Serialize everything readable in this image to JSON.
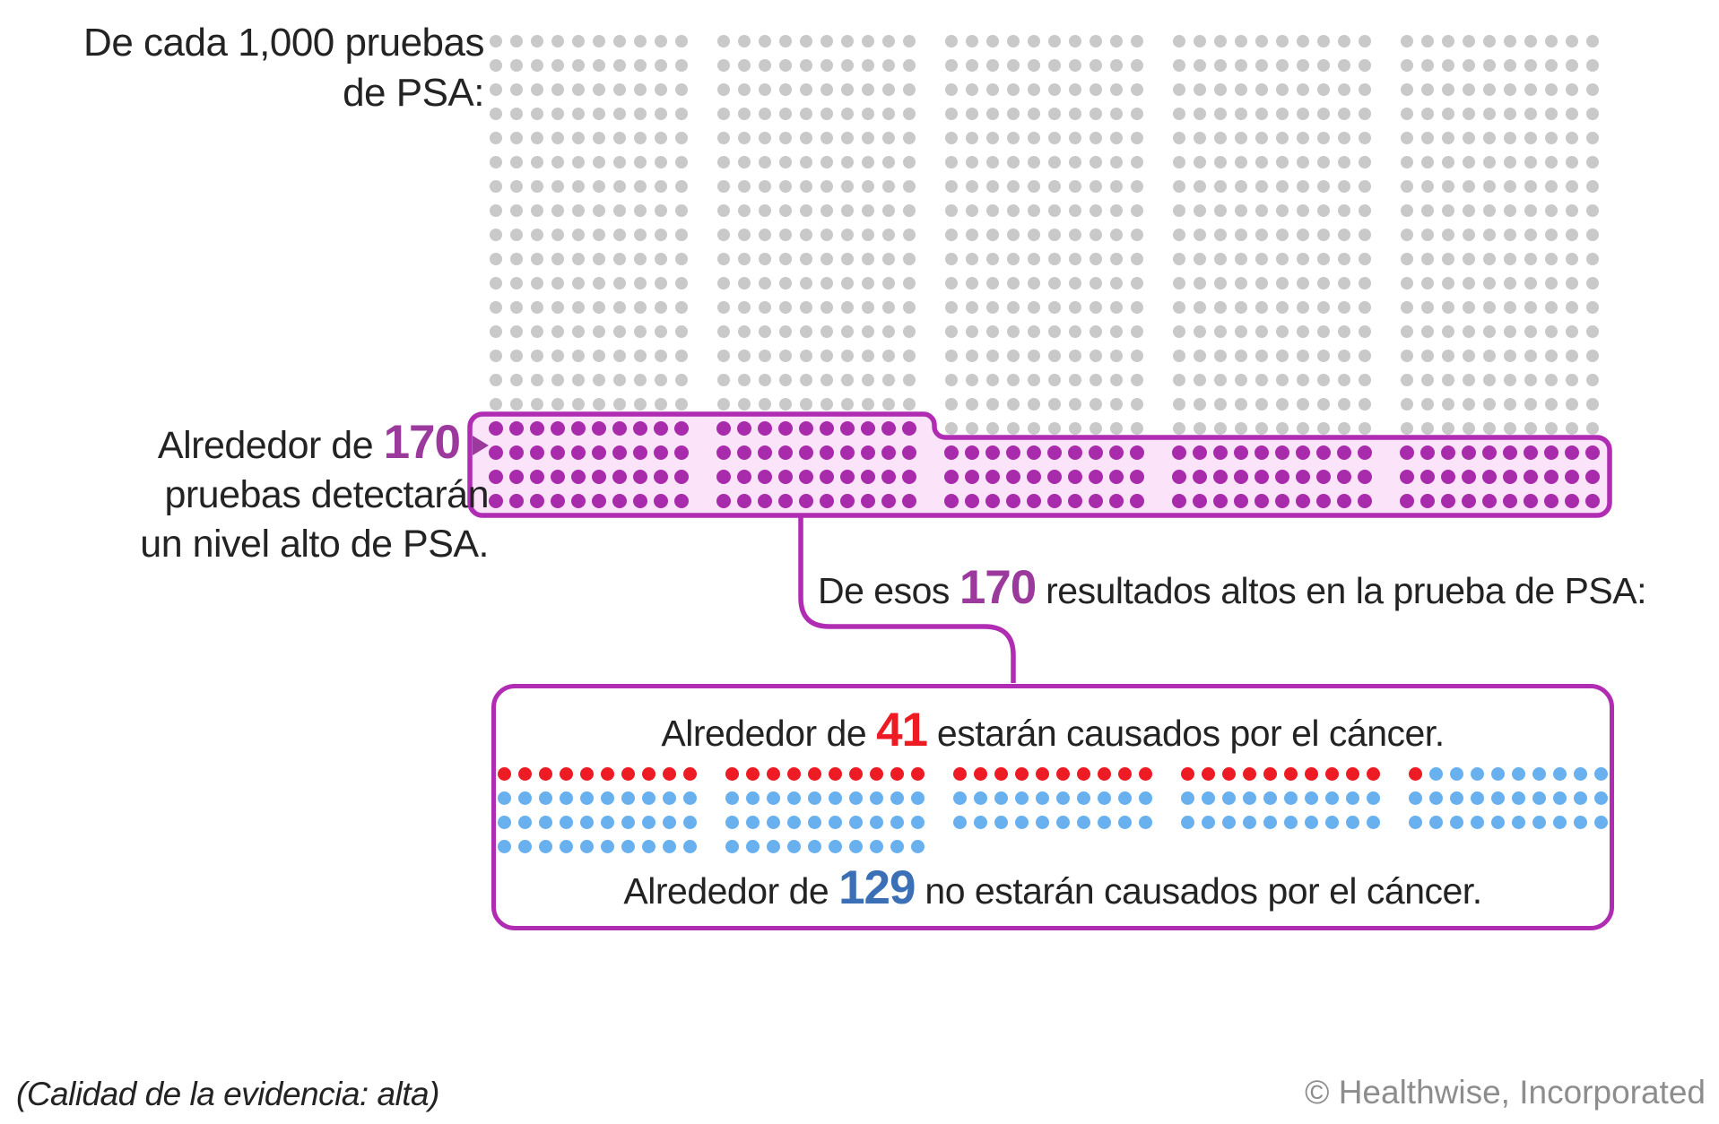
{
  "title": {
    "line1": "De cada 1,000 pruebas",
    "line2": "de PSA:"
  },
  "left_label": {
    "prefix": "Alrededor de ",
    "number": "170",
    "line2": "pruebas detectarán",
    "line3": "un nivel alto de PSA."
  },
  "middle_text": {
    "prefix": "De esos ",
    "number": "170",
    "suffix": " resultados altos en la prueba de PSA:"
  },
  "result_box": {
    "cancer_line": {
      "prefix": "Alrededor de ",
      "number": "41",
      "suffix": " estarán causados por el cáncer."
    },
    "no_cancer_line": {
      "prefix": "Alrededor de ",
      "number": "129",
      "suffix": " no estarán causados por el cáncer."
    }
  },
  "footer": {
    "evidence_note": "(Calidad de la evidencia: alta)",
    "copyright": "© Healthwise, Incorporated"
  },
  "colors": {
    "ink": "#232323",
    "gray_dot": "#c9c9c9",
    "purple_dot": "#a82bab",
    "magenta_border": "#b02db3",
    "pink_fill": "#fbe4fa",
    "purple_text": "#9b3a9c",
    "red": "#ec1b24",
    "blue_dot": "#68b0ee",
    "blue_text": "#3b70b7",
    "muted": "#8d8d8d"
  },
  "chart_data": {
    "type": "icon_array",
    "title": "De cada 1,000 pruebas de PSA:",
    "total_tests": 1000,
    "high_psa_count": 170,
    "cancer_count": 41,
    "not_cancer_count": 129,
    "top_grid": {
      "rows": 20,
      "columns": 50,
      "columns_per_block": 10,
      "highlight_split_column": 20,
      "highlight_rows_left_of_split": 4,
      "highlight_rows_right_of_split": 3,
      "plain_color_key": "gray_dot",
      "highlight_color_key": "purple_dot"
    },
    "bottom_grid": {
      "row_lengths": [
        50,
        50,
        50,
        20
      ],
      "columns_per_block": 10,
      "red_count": 41,
      "red_color_key": "red",
      "rest_color_key": "blue_dot"
    }
  }
}
